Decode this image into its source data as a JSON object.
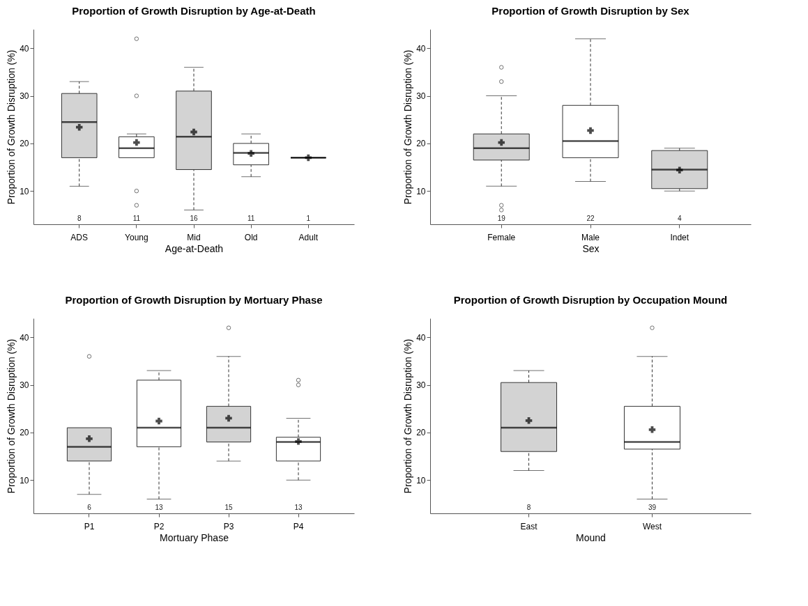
{
  "chart_data": [
    {
      "type": "box",
      "title": "Proportion of Growth Disruption by Age-at-Death",
      "xlabel": "Age-at-Death",
      "ylabel": "Proportion of Growth Disruption (%)",
      "categories": [
        "ADS",
        "Young",
        "Mid",
        "Old",
        "Adult"
      ],
      "colors": [
        "#d3d3d3",
        "#ffffff",
        "#d3d3d3",
        "#ffffff",
        "#000000"
      ],
      "boxes": [
        {
          "low": 11,
          "q1": 17,
          "median": 24.5,
          "q3": 30.5,
          "high": 33,
          "mean": 23.4
        },
        {
          "low": 17,
          "q1": 17,
          "median": 19,
          "q3": 21.4,
          "high": 22,
          "mean": 20.2,
          "outliers": [
            42,
            30,
            10,
            7
          ]
        },
        {
          "low": 6,
          "q1": 14.5,
          "median": 21.4,
          "q3": 31,
          "high": 36,
          "mean": 22.4
        },
        {
          "low": 13,
          "q1": 15.5,
          "median": 18,
          "q3": 20,
          "high": 22,
          "mean": 17.9
        },
        {
          "low": 17,
          "q1": 17,
          "median": 17,
          "q3": 17,
          "high": 17,
          "mean": 17
        }
      ],
      "ylim": [
        3,
        44
      ],
      "yticks": [
        10,
        20,
        30,
        40
      ],
      "annotations": [
        "8",
        "11",
        "16",
        "11",
        "1"
      ]
    },
    {
      "type": "box",
      "title": "Proportion of Growth Disruption by Sex",
      "xlabel": "Sex",
      "ylabel": "Proportion of Growth Disruption (%)",
      "categories": [
        "Female",
        "Male",
        "Indet"
      ],
      "colors": [
        "#d3d3d3",
        "#ffffff",
        "#d3d3d3"
      ],
      "boxes": [
        {
          "low": 11,
          "q1": 16.5,
          "median": 19,
          "q3": 22,
          "high": 30,
          "mean": 20.2,
          "outliers": [
            36,
            33,
            7,
            6
          ]
        },
        {
          "low": 12,
          "q1": 17,
          "median": 20.5,
          "q3": 28,
          "high": 42,
          "mean": 22.7
        },
        {
          "low": 10,
          "q1": 10.5,
          "median": 14.5,
          "q3": 18.5,
          "high": 19,
          "mean": 14.4
        }
      ],
      "ylim": [
        3,
        44
      ],
      "yticks": [
        10,
        20,
        30,
        40
      ],
      "annotations": [
        "19",
        "22",
        "4"
      ]
    },
    {
      "type": "box",
      "title": "Proportion of Growth Disruption by Mortuary Phase",
      "xlabel": "Mortuary Phase",
      "ylabel": "Proportion of Growth Disruption (%)",
      "categories": [
        "P1",
        "P2",
        "P3",
        "P4"
      ],
      "colors": [
        "#d3d3d3",
        "#ffffff",
        "#d3d3d3",
        "#ffffff"
      ],
      "boxes": [
        {
          "low": 7,
          "q1": 14,
          "median": 17,
          "q3": 21,
          "high": 21,
          "mean": 18.7,
          "outliers": [
            36
          ]
        },
        {
          "low": 6,
          "q1": 17,
          "median": 21,
          "q3": 31,
          "high": 33,
          "mean": 22.4
        },
        {
          "low": 14,
          "q1": 18,
          "median": 21,
          "q3": 25.5,
          "high": 36,
          "mean": 23,
          "outliers": [
            42
          ]
        },
        {
          "low": 10,
          "q1": 14,
          "median": 18,
          "q3": 19,
          "high": 23,
          "mean": 18.1,
          "outliers": [
            31,
            30
          ]
        }
      ],
      "ylim": [
        3,
        44
      ],
      "yticks": [
        10,
        20,
        30,
        40
      ],
      "annotations": [
        "6",
        "13",
        "15",
        "13"
      ]
    },
    {
      "type": "box",
      "title": "Proportion of Growth Disruption by Occupation Mound",
      "xlabel": "Mound",
      "ylabel": "Proportion of Growth Disruption (%)",
      "categories": [
        "East",
        "West"
      ],
      "colors": [
        "#d3d3d3",
        "#ffffff"
      ],
      "boxes": [
        {
          "low": 12,
          "q1": 16,
          "median": 21,
          "q3": 30.5,
          "high": 33,
          "mean": 22.5
        },
        {
          "low": 6,
          "q1": 16.5,
          "median": 18,
          "q3": 25.5,
          "high": 36,
          "mean": 20.6,
          "outliers": [
            42
          ]
        }
      ],
      "ylim": [
        3,
        44
      ],
      "yticks": [
        10,
        20,
        30,
        40
      ],
      "annotations": [
        "8",
        "39"
      ]
    }
  ]
}
